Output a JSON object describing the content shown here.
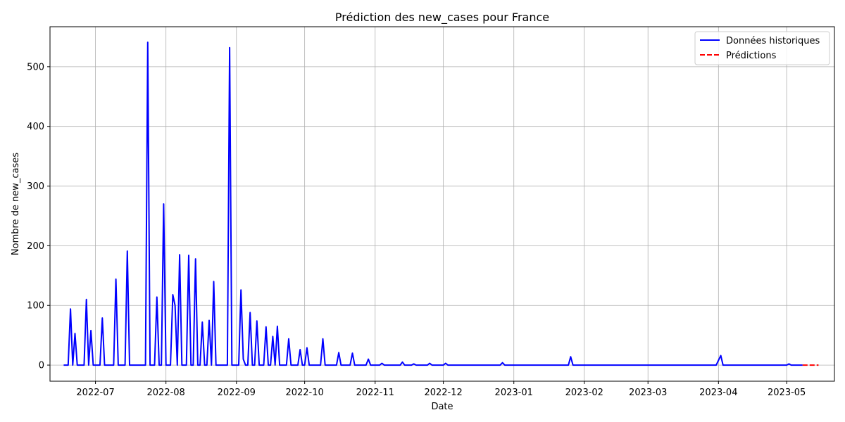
{
  "chart_data": {
    "type": "line",
    "title": "Prédiction des new_cases pour France",
    "xlabel": "Date",
    "ylabel": "Nombre de new_cases",
    "xlim": [
      "2022-06-11",
      "2023-05-22"
    ],
    "ylim": [
      -27,
      567
    ],
    "grid": true,
    "legend_position": "top-right",
    "x_tick_labels": [
      "2022-07",
      "2022-08",
      "2022-09",
      "2022-10",
      "2022-11",
      "2022-12",
      "2023-01",
      "2023-02",
      "2023-03",
      "2023-04",
      "2023-05"
    ],
    "x_tick_dates": [
      "2022-07-01",
      "2022-08-01",
      "2022-09-01",
      "2022-10-01",
      "2022-11-01",
      "2022-12-01",
      "2023-01-01",
      "2023-02-01",
      "2023-03-01",
      "2023-04-01",
      "2023-05-01"
    ],
    "y_ticks": [
      0,
      100,
      200,
      300,
      400,
      500
    ],
    "series": [
      {
        "name": "Données historiques",
        "color": "#0000ff",
        "style": "solid",
        "points": [
          [
            "2022-06-17",
            0
          ],
          [
            "2022-06-19",
            0
          ],
          [
            "2022-06-20",
            94
          ],
          [
            "2022-06-21",
            0
          ],
          [
            "2022-06-22",
            53
          ],
          [
            "2022-06-23",
            0
          ],
          [
            "2022-06-26",
            0
          ],
          [
            "2022-06-27",
            110
          ],
          [
            "2022-06-28",
            0
          ],
          [
            "2022-06-29",
            58
          ],
          [
            "2022-06-30",
            0
          ],
          [
            "2022-07-03",
            0
          ],
          [
            "2022-07-04",
            79
          ],
          [
            "2022-07-05",
            0
          ],
          [
            "2022-07-09",
            0
          ],
          [
            "2022-07-10",
            144
          ],
          [
            "2022-07-11",
            0
          ],
          [
            "2022-07-14",
            0
          ],
          [
            "2022-07-15",
            191
          ],
          [
            "2022-07-16",
            0
          ],
          [
            "2022-07-23",
            0
          ],
          [
            "2022-07-24",
            541
          ],
          [
            "2022-07-25",
            0
          ],
          [
            "2022-07-27",
            0
          ],
          [
            "2022-07-28",
            114
          ],
          [
            "2022-07-29",
            0
          ],
          [
            "2022-07-30",
            0
          ],
          [
            "2022-07-31",
            270
          ],
          [
            "2022-08-01",
            0
          ],
          [
            "2022-08-03",
            0
          ],
          [
            "2022-08-04",
            118
          ],
          [
            "2022-08-05",
            100
          ],
          [
            "2022-08-06",
            0
          ],
          [
            "2022-08-07",
            185
          ],
          [
            "2022-08-08",
            0
          ],
          [
            "2022-08-09",
            0
          ],
          [
            "2022-08-10",
            0
          ],
          [
            "2022-08-11",
            184
          ],
          [
            "2022-08-12",
            0
          ],
          [
            "2022-08-13",
            0
          ],
          [
            "2022-08-14",
            178
          ],
          [
            "2022-08-15",
            0
          ],
          [
            "2022-08-16",
            0
          ],
          [
            "2022-08-17",
            72
          ],
          [
            "2022-08-18",
            0
          ],
          [
            "2022-08-19",
            0
          ],
          [
            "2022-08-20",
            75
          ],
          [
            "2022-08-21",
            0
          ],
          [
            "2022-08-22",
            140
          ],
          [
            "2022-08-23",
            0
          ],
          [
            "2022-08-28",
            0
          ],
          [
            "2022-08-29",
            532
          ],
          [
            "2022-08-30",
            0
          ],
          [
            "2022-09-02",
            0
          ],
          [
            "2022-09-03",
            126
          ],
          [
            "2022-09-04",
            10
          ],
          [
            "2022-09-05",
            0
          ],
          [
            "2022-09-06",
            0
          ],
          [
            "2022-09-07",
            88
          ],
          [
            "2022-09-08",
            0
          ],
          [
            "2022-09-09",
            0
          ],
          [
            "2022-09-10",
            74
          ],
          [
            "2022-09-11",
            0
          ],
          [
            "2022-09-12",
            0
          ],
          [
            "2022-09-13",
            0
          ],
          [
            "2022-09-14",
            64
          ],
          [
            "2022-09-15",
            0
          ],
          [
            "2022-09-16",
            0
          ],
          [
            "2022-09-17",
            48
          ],
          [
            "2022-09-18",
            0
          ],
          [
            "2022-09-19",
            65
          ],
          [
            "2022-09-20",
            0
          ],
          [
            "2022-09-23",
            0
          ],
          [
            "2022-09-24",
            44
          ],
          [
            "2022-09-25",
            0
          ],
          [
            "2022-09-28",
            0
          ],
          [
            "2022-09-29",
            26
          ],
          [
            "2022-09-30",
            0
          ],
          [
            "2022-10-01",
            0
          ],
          [
            "2022-10-02",
            29
          ],
          [
            "2022-10-03",
            0
          ],
          [
            "2022-10-08",
            0
          ],
          [
            "2022-10-09",
            44
          ],
          [
            "2022-10-10",
            0
          ],
          [
            "2022-10-15",
            0
          ],
          [
            "2022-10-16",
            21
          ],
          [
            "2022-10-17",
            0
          ],
          [
            "2022-10-21",
            0
          ],
          [
            "2022-10-22",
            20
          ],
          [
            "2022-10-23",
            0
          ],
          [
            "2022-10-28",
            0
          ],
          [
            "2022-10-29",
            10
          ],
          [
            "2022-10-30",
            0
          ],
          [
            "2022-11-03",
            0
          ],
          [
            "2022-11-04",
            3
          ],
          [
            "2022-11-05",
            0
          ],
          [
            "2022-11-12",
            0
          ],
          [
            "2022-11-13",
            5
          ],
          [
            "2022-11-14",
            0
          ],
          [
            "2022-11-17",
            0
          ],
          [
            "2022-11-18",
            2
          ],
          [
            "2022-11-19",
            0
          ],
          [
            "2022-11-24",
            0
          ],
          [
            "2022-11-25",
            3
          ],
          [
            "2022-11-26",
            0
          ],
          [
            "2022-12-01",
            0
          ],
          [
            "2022-12-02",
            3
          ],
          [
            "2022-12-03",
            0
          ],
          [
            "2022-12-26",
            0
          ],
          [
            "2022-12-27",
            4
          ],
          [
            "2022-12-28",
            0
          ],
          [
            "2023-01-25",
            0
          ],
          [
            "2023-01-26",
            14
          ],
          [
            "2023-01-27",
            0
          ],
          [
            "2023-03-31",
            0
          ],
          [
            "2023-04-02",
            16
          ],
          [
            "2023-04-03",
            0
          ],
          [
            "2023-05-01",
            0
          ],
          [
            "2023-05-02",
            2
          ],
          [
            "2023-05-03",
            0
          ],
          [
            "2023-05-08",
            0
          ]
        ]
      },
      {
        "name": "Prédictions",
        "color": "#ff0000",
        "style": "dashed",
        "points": [
          [
            "2023-05-08",
            0
          ],
          [
            "2023-05-15",
            0
          ]
        ]
      }
    ]
  }
}
